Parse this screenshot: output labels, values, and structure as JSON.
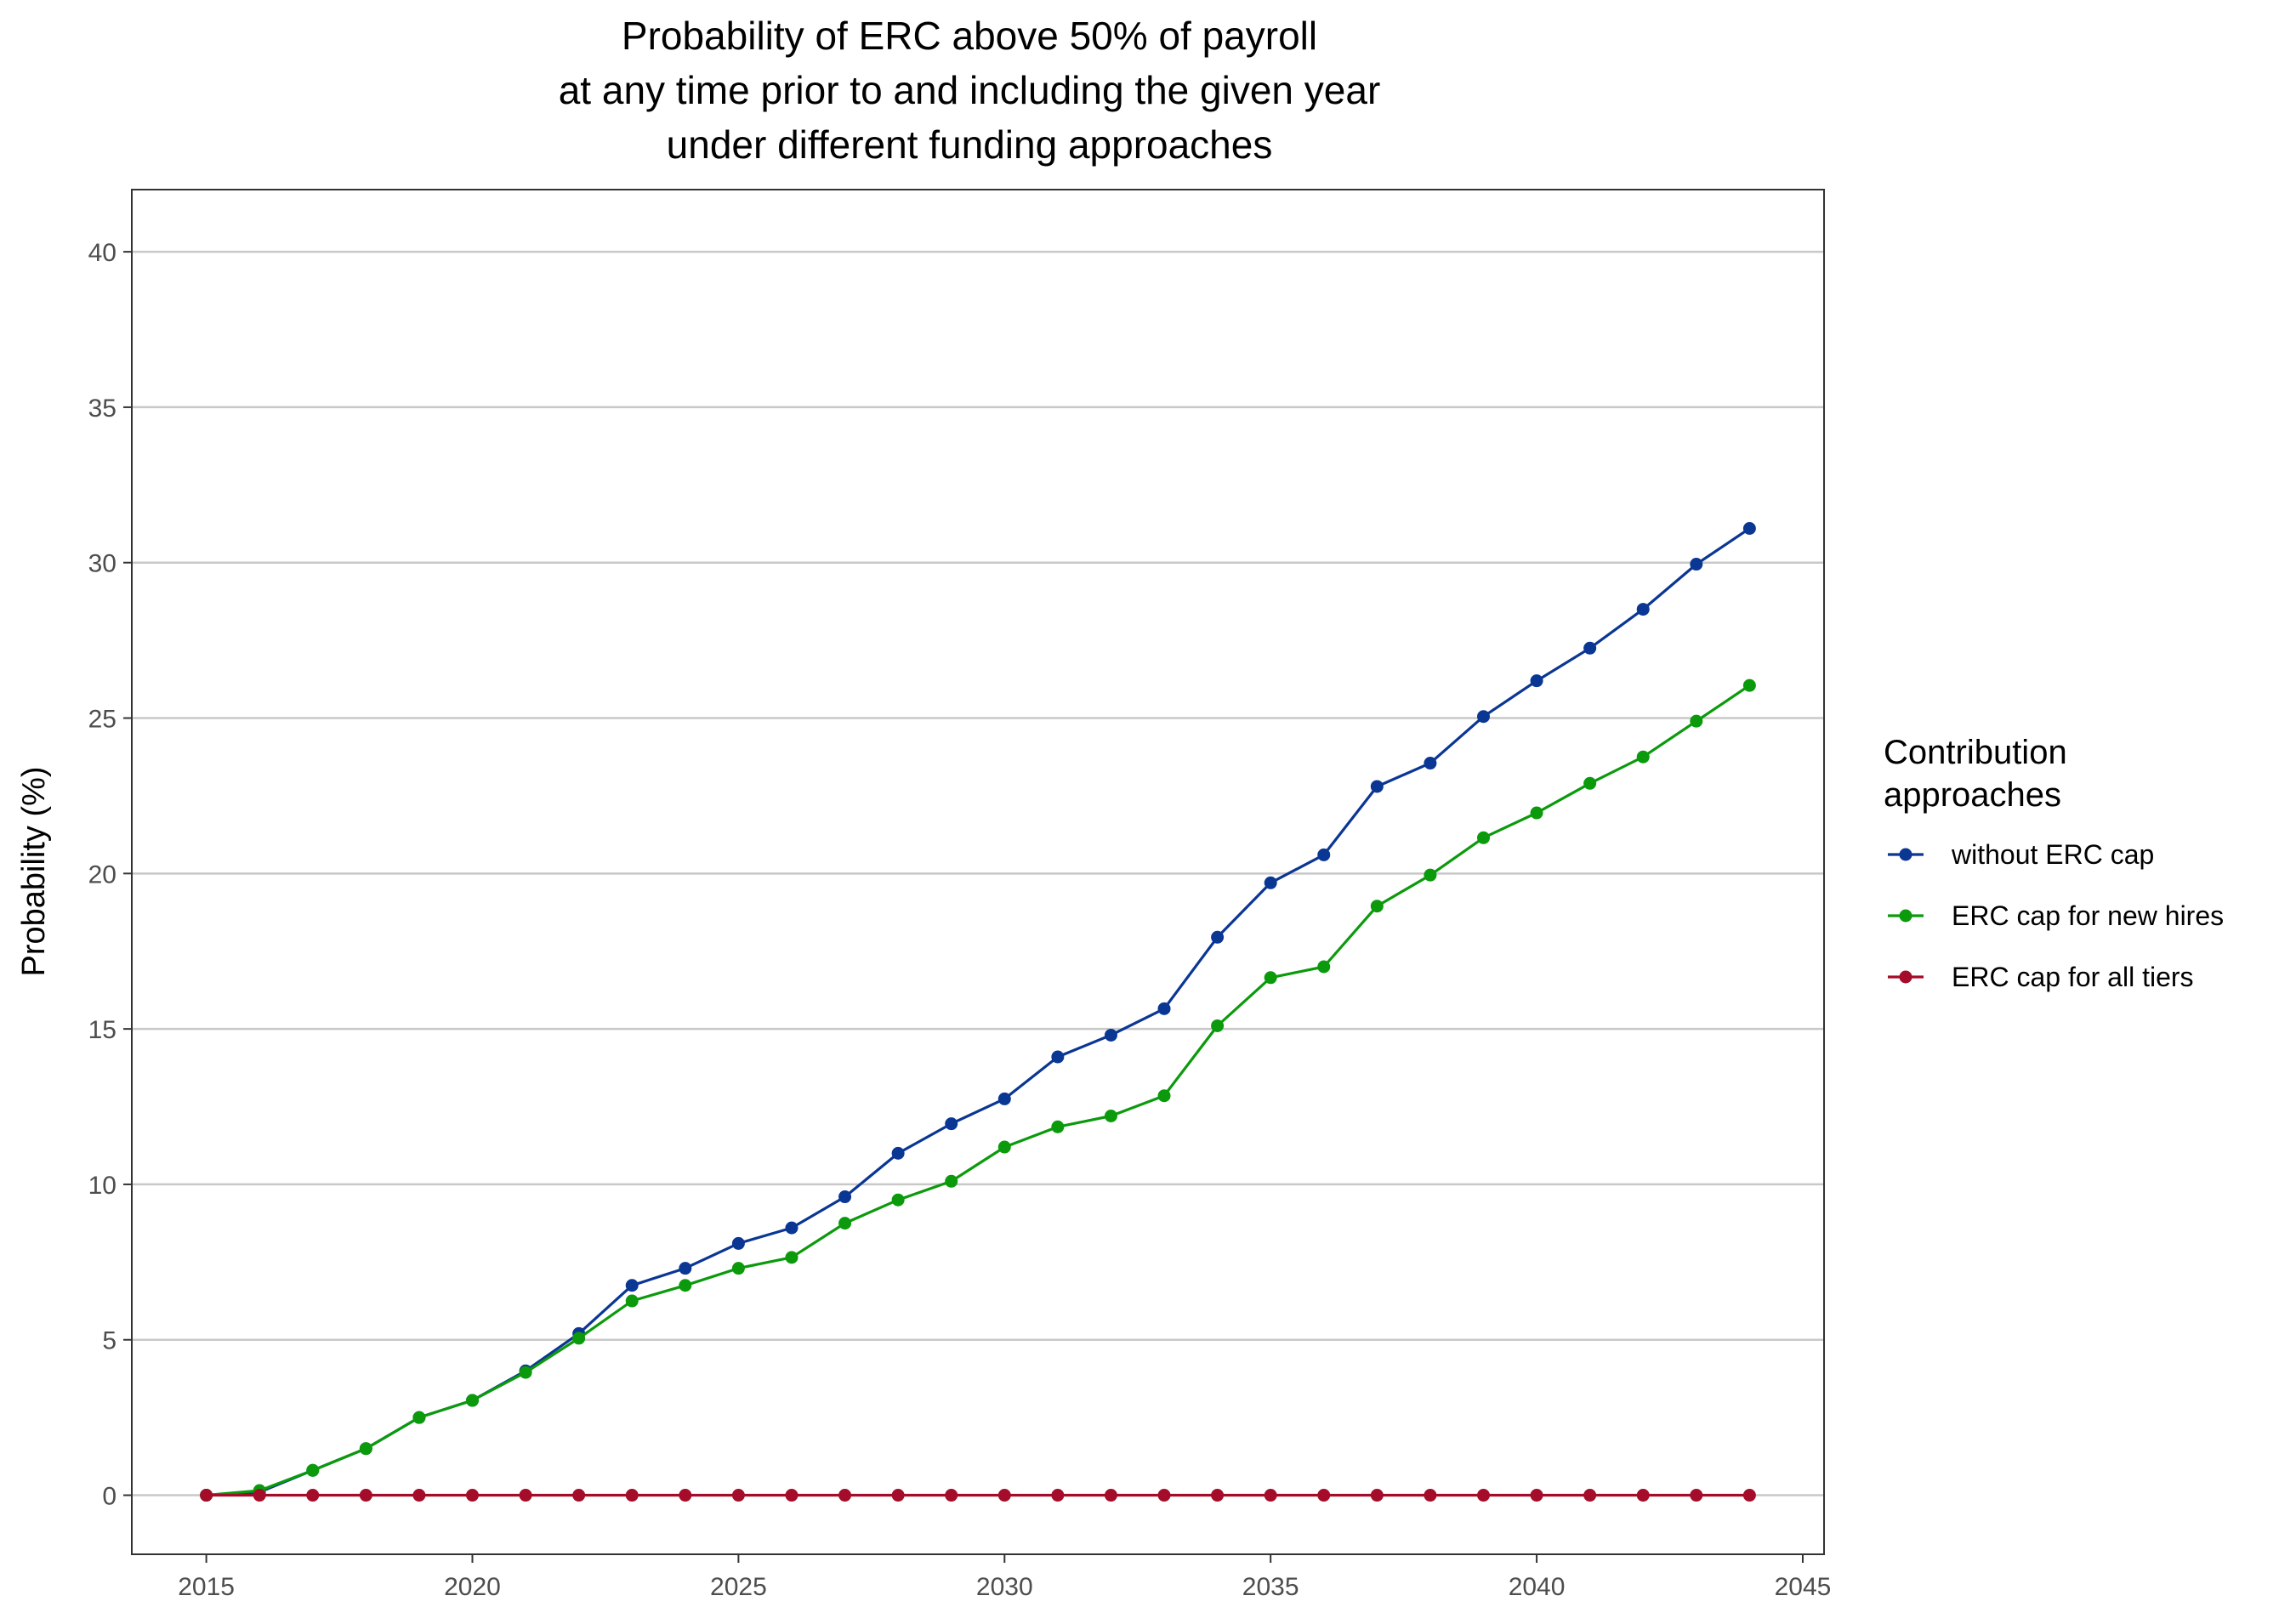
{
  "chart_data": {
    "type": "line",
    "title_lines": [
      "Probability of ERC above 50% of payroll",
      "at any time prior to and including the given year",
      "under different funding approaches"
    ],
    "xlabel": "",
    "ylabel": "Probability (%)",
    "xlim": [
      2013.6,
      2045.4
    ],
    "ylim": [
      -1.9,
      42
    ],
    "x_ticks": [
      2015,
      2020,
      2025,
      2030,
      2035,
      2040,
      2045
    ],
    "y_ticks": [
      0,
      5,
      10,
      15,
      20,
      25,
      30,
      35,
      40
    ],
    "grid": "horizontal-major",
    "legend": {
      "title_lines": [
        "Contribution",
        "approaches"
      ],
      "position": "right"
    },
    "x": [
      2015,
      2016,
      2017,
      2018,
      2019,
      2020,
      2021,
      2022,
      2023,
      2024,
      2025,
      2026,
      2027,
      2028,
      2029,
      2030,
      2031,
      2032,
      2033,
      2034,
      2035,
      2036,
      2037,
      2038,
      2039,
      2040,
      2041,
      2042,
      2043,
      2044
    ],
    "series": [
      {
        "name": "without ERC cap",
        "color": "#0a3694",
        "values": [
          0,
          0.1,
          0.8,
          1.5,
          2.5,
          3.05,
          4.0,
          5.2,
          6.75,
          7.3,
          8.1,
          8.6,
          9.6,
          11.0,
          11.95,
          12.75,
          14.1,
          14.8,
          15.65,
          17.95,
          19.7,
          20.6,
          22.8,
          23.55,
          25.05,
          26.2,
          27.25,
          28.5,
          29.95,
          31.1
        ]
      },
      {
        "name": "ERC cap for new hires",
        "color": "#0b9a0b",
        "values": [
          0,
          0.15,
          0.8,
          1.5,
          2.5,
          3.05,
          3.95,
          5.05,
          6.25,
          6.75,
          7.3,
          7.65,
          8.75,
          9.5,
          10.1,
          11.2,
          11.85,
          12.2,
          12.85,
          15.1,
          16.65,
          17.0,
          18.95,
          19.95,
          21.15,
          21.95,
          22.9,
          23.75,
          24.9,
          26.05
        ]
      },
      {
        "name": "ERC cap for all tiers",
        "color": "#a50c29",
        "values": [
          0,
          0,
          0,
          0,
          0,
          0,
          0,
          0,
          0,
          0,
          0,
          0,
          0,
          0,
          0,
          0,
          0,
          0,
          0,
          0,
          0,
          0,
          0,
          0,
          0,
          0,
          0,
          0,
          0,
          0
        ]
      }
    ]
  }
}
